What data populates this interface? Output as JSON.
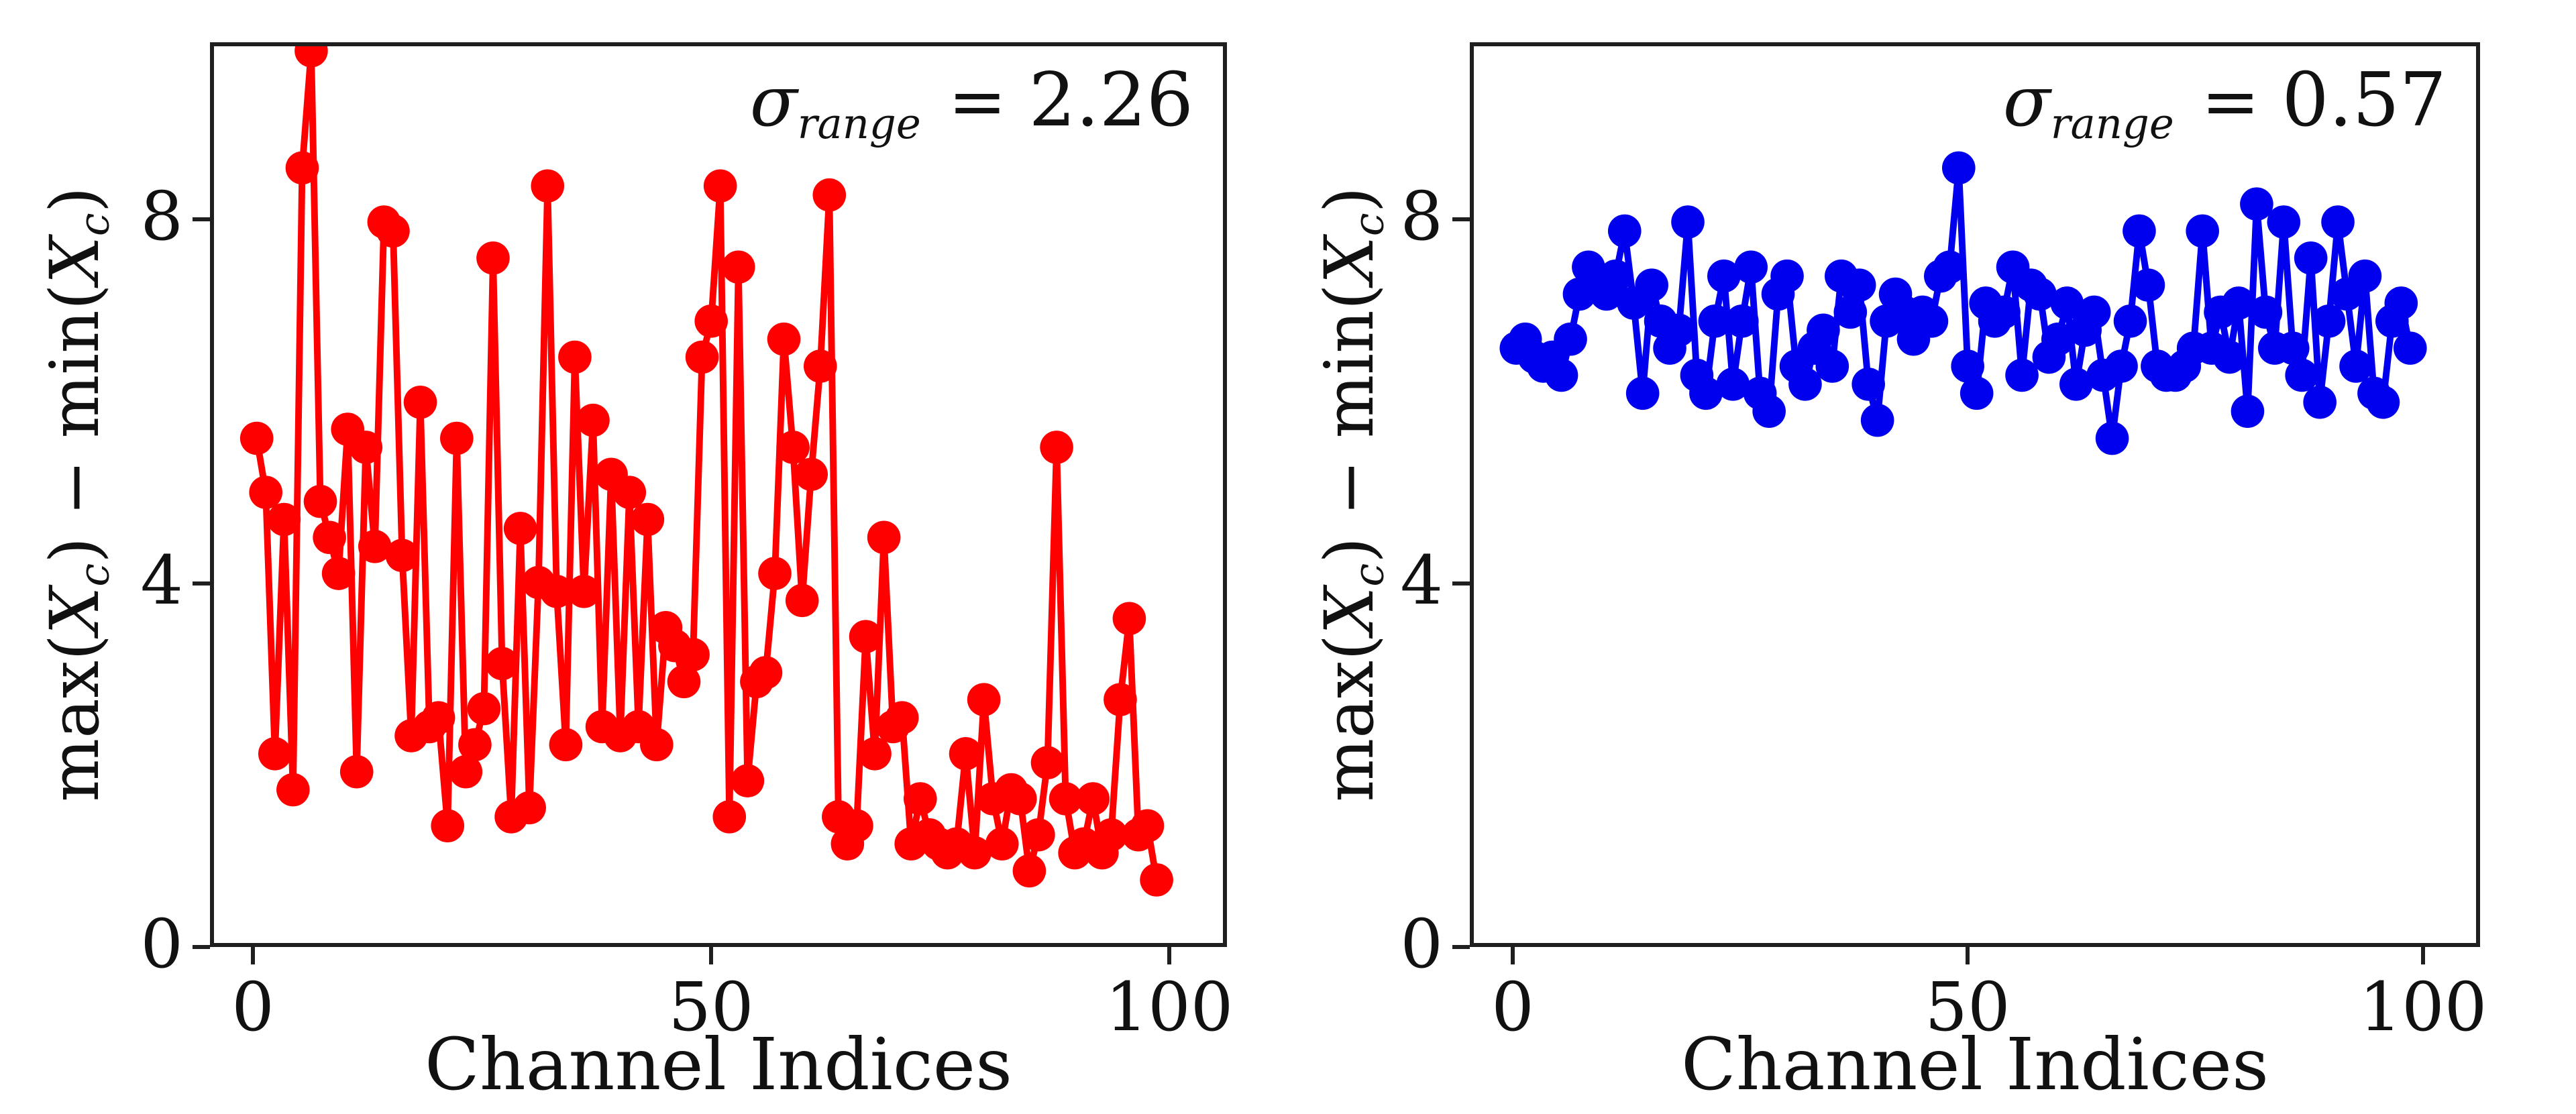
{
  "figure": {
    "background": "#ffffff",
    "spine_color": "#1f1f1f"
  },
  "labels": {
    "xlabel": "Channel Indices",
    "ylabel_p1": "max(",
    "ylabel_var": "X",
    "ylabel_sub": "c",
    "ylabel_p2": ") − min(",
    "ylabel_p3": ")"
  },
  "chart_data": [
    {
      "type": "line",
      "marker": "circle",
      "color": "#ff0000",
      "xlabel": "Channel Indices",
      "ylabel": "max(X_c) − min(X_c)",
      "xlim": [
        -4.7,
        106.3
      ],
      "ylim": [
        0,
        9.95
      ],
      "xticks": [
        0,
        50,
        100
      ],
      "yticks": [
        0,
        4,
        8
      ],
      "annotation": {
        "sigma": "σ",
        "sub": "range",
        "eq": " = ",
        "value": "2.26"
      },
      "values": [
        5.6,
        5.0,
        2.1,
        4.7,
        1.7,
        8.6,
        9.9,
        4.9,
        4.5,
        4.1,
        5.7,
        1.9,
        5.5,
        4.4,
        8.0,
        7.9,
        4.3,
        2.3,
        6.0,
        2.4,
        2.5,
        1.3,
        5.6,
        1.9,
        2.2,
        2.6,
        7.6,
        3.1,
        1.4,
        4.6,
        1.5,
        4.0,
        8.4,
        3.9,
        2.2,
        6.5,
        3.9,
        5.8,
        2.4,
        5.2,
        2.3,
        5.0,
        2.4,
        4.7,
        2.2,
        3.5,
        3.3,
        2.9,
        3.2,
        6.5,
        6.9,
        8.4,
        1.4,
        7.5,
        1.8,
        2.9,
        3.0,
        4.1,
        6.7,
        5.5,
        3.8,
        5.2,
        6.4,
        8.3,
        1.4,
        1.1,
        1.3,
        3.4,
        2.1,
        4.5,
        2.4,
        2.5,
        1.1,
        1.6,
        1.2,
        1.1,
        1.0,
        1.1,
        2.1,
        1.0,
        2.7,
        1.6,
        1.1,
        1.7,
        1.6,
        0.8,
        1.2,
        2.0,
        5.5,
        1.6,
        1.0,
        1.1,
        1.6,
        1.0,
        1.2,
        2.7,
        3.6,
        1.2,
        1.3,
        0.7
      ]
    },
    {
      "type": "line",
      "marker": "circle",
      "color": "#0000ee",
      "xlabel": "Channel Indices",
      "ylabel": "max(X_c) − min(X_c)",
      "xlim": [
        -4.7,
        106.3
      ],
      "ylim": [
        0,
        9.95
      ],
      "xticks": [
        0,
        50,
        100
      ],
      "yticks": [
        0,
        4,
        8
      ],
      "annotation": {
        "sigma": "σ",
        "sub": "range",
        "eq": " = ",
        "value": "0.57"
      },
      "values": [
        6.6,
        6.7,
        6.5,
        6.4,
        6.5,
        6.3,
        6.7,
        7.2,
        7.5,
        7.3,
        7.2,
        7.4,
        7.9,
        7.1,
        6.1,
        7.3,
        6.9,
        6.6,
        6.8,
        8.0,
        6.3,
        6.1,
        6.9,
        7.4,
        6.2,
        6.9,
        7.5,
        6.1,
        5.9,
        7.2,
        7.4,
        6.4,
        6.2,
        6.6,
        6.8,
        6.4,
        7.4,
        7.0,
        7.3,
        6.2,
        5.8,
        6.9,
        7.2,
        7.0,
        6.7,
        7.0,
        6.9,
        7.4,
        7.5,
        8.6,
        6.4,
        6.1,
        7.1,
        6.9,
        7.0,
        7.5,
        6.3,
        7.3,
        7.2,
        6.5,
        6.7,
        7.1,
        6.2,
        6.8,
        7.0,
        6.3,
        5.6,
        6.4,
        6.9,
        7.9,
        7.3,
        6.4,
        6.3,
        6.3,
        6.4,
        6.6,
        7.9,
        6.6,
        7.0,
        6.5,
        7.1,
        5.9,
        8.2,
        7.0,
        6.6,
        8.0,
        6.6,
        6.3,
        7.6,
        6.0,
        6.9,
        8.0,
        7.2,
        6.4,
        7.4,
        6.1,
        6.0,
        6.9,
        7.1,
        6.6
      ]
    }
  ]
}
